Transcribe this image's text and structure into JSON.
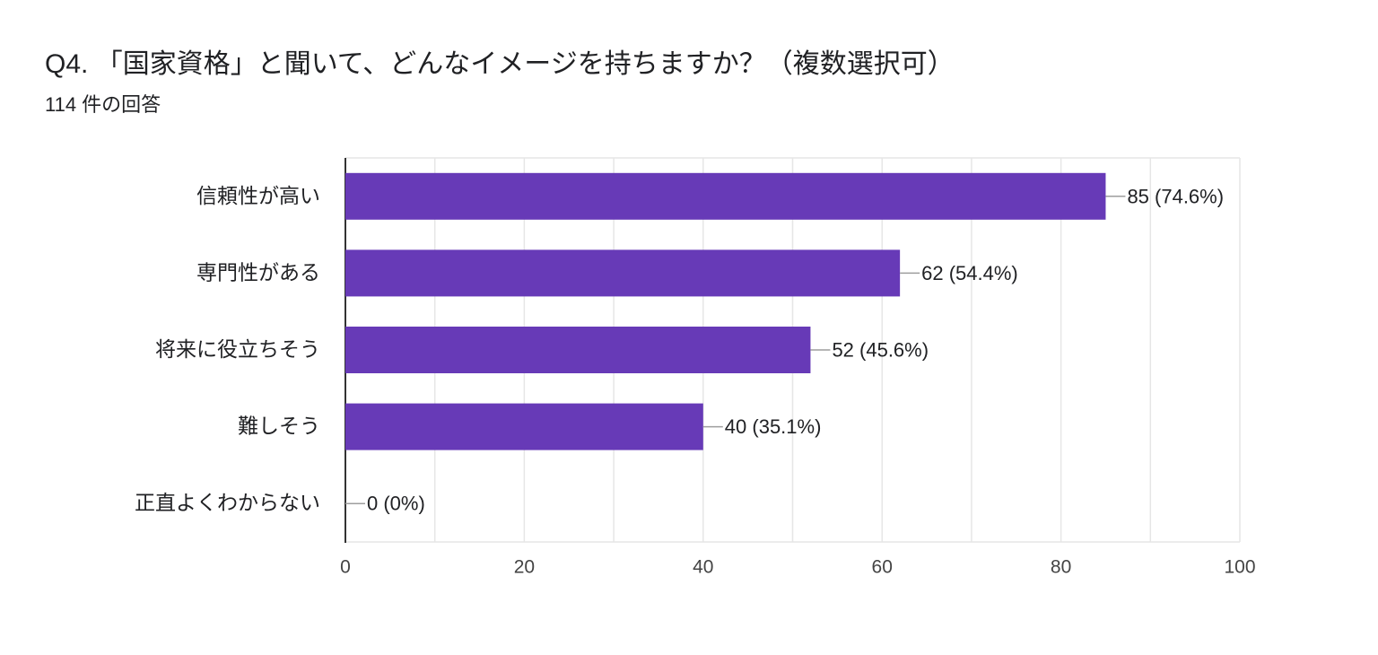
{
  "title": "Q4. 「国家資格」と聞いて、どんなイメージを持ちますか？（複数選択可）",
  "response_count": "114 件の回答",
  "colors": {
    "bar": "#673ab7",
    "grid": "#e6e6e6",
    "axis": "#333333",
    "leader": "#9e9e9e"
  },
  "chart_data": {
    "type": "bar",
    "orientation": "horizontal",
    "categories": [
      "信頼性が高い",
      "専門性がある",
      "将来に役立ちそう",
      "難しそう",
      "正直よくわからない"
    ],
    "values": [
      85,
      62,
      52,
      40,
      0
    ],
    "data_labels": [
      "85 (74.6%)",
      "62 (54.4%)",
      "52 (45.6%)",
      "40 (35.1%)",
      "0 (0%)"
    ],
    "xlim": [
      0,
      100
    ],
    "xticks": [
      0,
      20,
      40,
      60,
      80,
      100
    ],
    "grid": true
  }
}
